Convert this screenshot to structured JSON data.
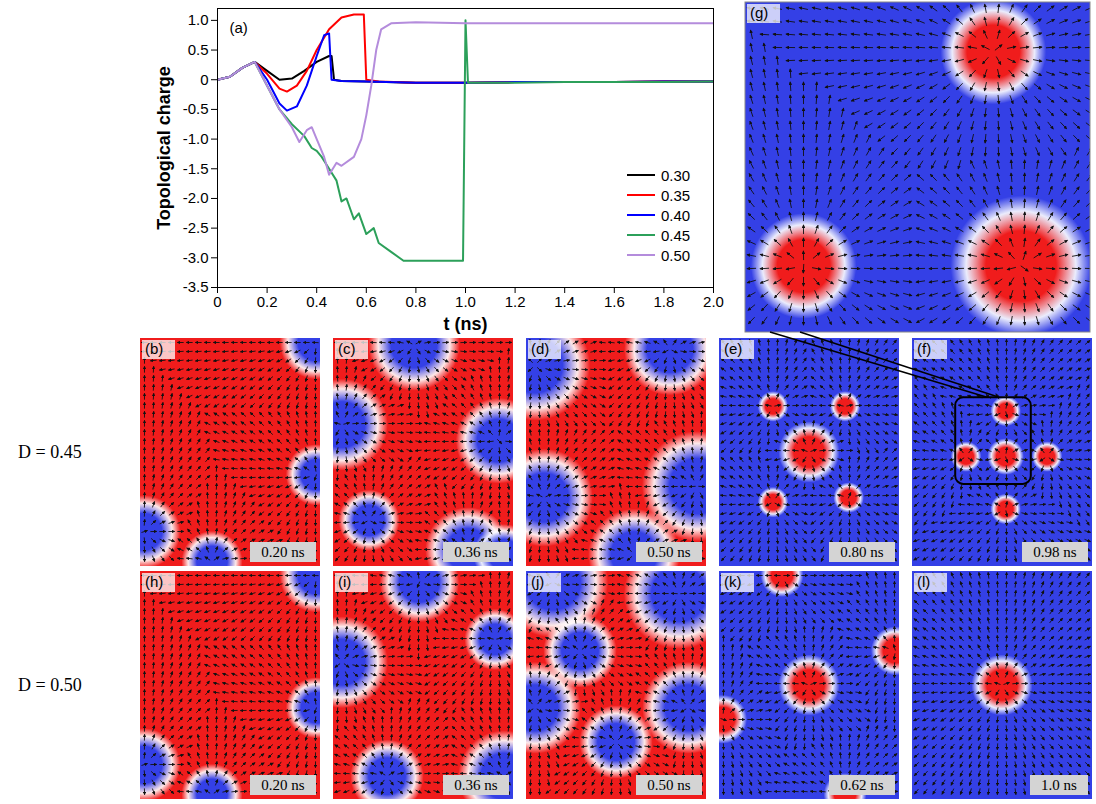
{
  "chart_data": {
    "type": "line",
    "panel_label": "(a)",
    "x_label": "t (ns)",
    "y_label": "Topological charge",
    "xlim": [
      0,
      2
    ],
    "xticks": [
      0,
      0.2,
      0.4,
      0.6,
      0.8,
      {
        "value": 1,
        "label": "1.0"
      },
      1.2,
      1.4,
      1.6,
      1.8,
      {
        "value": 2,
        "label": "2.0"
      }
    ],
    "ylim": [
      -3.5,
      1.2
    ],
    "yticks": [
      {
        "value": -3.5,
        "label": "-3.5"
      },
      {
        "value": -3,
        "label": "-3.0"
      },
      {
        "value": -2.5,
        "label": "-2.5"
      },
      {
        "value": -2,
        "label": "-2.0"
      },
      {
        "value": -1.5,
        "label": "-1.5"
      },
      {
        "value": -1,
        "label": "-1.0"
      },
      {
        "value": -0.5,
        "label": "-0.5"
      },
      0,
      0.5,
      {
        "value": 1,
        "label": "1.0"
      }
    ],
    "grid": false,
    "legend": "lower right",
    "series": [
      {
        "name": "0.30",
        "color": "#000000",
        "x": [
          0,
          0.05,
          0.1,
          0.15,
          0.2,
          0.25,
          0.3,
          0.35,
          0.4,
          0.45,
          0.46,
          0.47,
          0.5,
          0.6,
          0.8,
          1.0,
          1.2,
          1.4,
          1.6,
          1.8,
          2.0
        ],
        "values": [
          0,
          0.05,
          0.2,
          0.3,
          0.15,
          0.0,
          0.02,
          0.15,
          0.3,
          0.4,
          0.4,
          0.0,
          -0.02,
          -0.03,
          -0.05,
          -0.05,
          -0.04,
          -0.04,
          -0.04,
          -0.03,
          -0.03
        ]
      },
      {
        "name": "0.35",
        "color": "#ff0000",
        "x": [
          0,
          0.05,
          0.1,
          0.15,
          0.2,
          0.25,
          0.28,
          0.32,
          0.36,
          0.4,
          0.45,
          0.5,
          0.55,
          0.59,
          0.6,
          0.65,
          0.8,
          1.0,
          1.2,
          1.4,
          1.6,
          1.8,
          2.0
        ],
        "values": [
          0,
          0.05,
          0.2,
          0.3,
          0.1,
          -0.15,
          -0.2,
          -0.1,
          0.15,
          0.5,
          0.85,
          1.05,
          1.1,
          1.1,
          0.0,
          -0.03,
          -0.05,
          -0.05,
          -0.04,
          -0.04,
          -0.04,
          -0.03,
          -0.03
        ]
      },
      {
        "name": "0.40",
        "color": "#0000ff",
        "x": [
          0,
          0.05,
          0.1,
          0.15,
          0.2,
          0.25,
          0.28,
          0.32,
          0.36,
          0.4,
          0.43,
          0.45,
          0.46,
          0.5,
          0.6,
          0.8,
          1.0,
          1.2,
          1.4,
          1.6,
          1.8,
          2.0
        ],
        "values": [
          0,
          0.05,
          0.2,
          0.3,
          0.0,
          -0.4,
          -0.52,
          -0.45,
          -0.1,
          0.4,
          0.75,
          0.78,
          0.0,
          -0.02,
          -0.03,
          -0.05,
          -0.05,
          -0.04,
          -0.04,
          -0.04,
          -0.03,
          -0.03
        ]
      },
      {
        "name": "0.45",
        "color": "#2ca05a",
        "x": [
          0,
          0.05,
          0.1,
          0.15,
          0.2,
          0.25,
          0.3,
          0.35,
          0.38,
          0.4,
          0.42,
          0.45,
          0.48,
          0.5,
          0.52,
          0.55,
          0.57,
          0.6,
          0.63,
          0.65,
          0.7,
          0.75,
          0.8,
          0.9,
          0.98,
          0.99,
          1.0,
          1.01,
          1.1,
          1.2,
          1.4,
          1.6,
          1.8,
          2.0
        ],
        "values": [
          0,
          0.05,
          0.2,
          0.3,
          -0.1,
          -0.5,
          -0.75,
          -0.95,
          -1.15,
          -1.2,
          -1.3,
          -1.5,
          -1.7,
          -2.05,
          -2.0,
          -2.35,
          -2.25,
          -2.6,
          -2.5,
          -2.75,
          -2.9,
          -3.05,
          -3.05,
          -3.05,
          -3.05,
          -3.05,
          1.0,
          -0.05,
          -0.05,
          -0.05,
          -0.04,
          -0.04,
          -0.04,
          -0.03
        ]
      },
      {
        "name": "0.50",
        "color": "#b48cdc",
        "x": [
          0,
          0.05,
          0.1,
          0.15,
          0.2,
          0.25,
          0.3,
          0.33,
          0.36,
          0.38,
          0.4,
          0.43,
          0.45,
          0.48,
          0.5,
          0.55,
          0.58,
          0.6,
          0.62,
          0.64,
          0.66,
          0.7,
          0.8,
          1.0,
          1.2,
          1.4,
          1.6,
          1.8,
          2.0
        ],
        "values": [
          0,
          0.05,
          0.2,
          0.3,
          -0.1,
          -0.5,
          -0.8,
          -1.05,
          -0.85,
          -0.8,
          -1.0,
          -1.3,
          -1.6,
          -1.4,
          -1.45,
          -1.3,
          -1.0,
          -0.6,
          -0.1,
          0.5,
          0.85,
          0.95,
          0.97,
          0.95,
          0.95,
          0.95,
          0.95,
          0.95,
          0.95
        ]
      }
    ]
  },
  "snapshots": {
    "rows": [
      {
        "label": "D = 0.45",
        "panels": [
          {
            "letter": "(b)",
            "time": "0.20 ns"
          },
          {
            "letter": "(c)",
            "time": "0.36 ns"
          },
          {
            "letter": "(d)",
            "time": "0.50 ns"
          },
          {
            "letter": "(e)",
            "time": "0.80 ns"
          },
          {
            "letter": "(f)",
            "time": "0.98 ns"
          }
        ]
      },
      {
        "label": "D = 0.50",
        "panels": [
          {
            "letter": "(h)",
            "time": "0.20 ns"
          },
          {
            "letter": "(i)",
            "time": "0.36 ns"
          },
          {
            "letter": "(j)",
            "time": "0.50 ns"
          },
          {
            "letter": "(k)",
            "time": "0.62 ns"
          },
          {
            "letter": "(l)",
            "time": "1.0 ns"
          }
        ]
      }
    ],
    "inset": {
      "letter": "(g)"
    }
  }
}
